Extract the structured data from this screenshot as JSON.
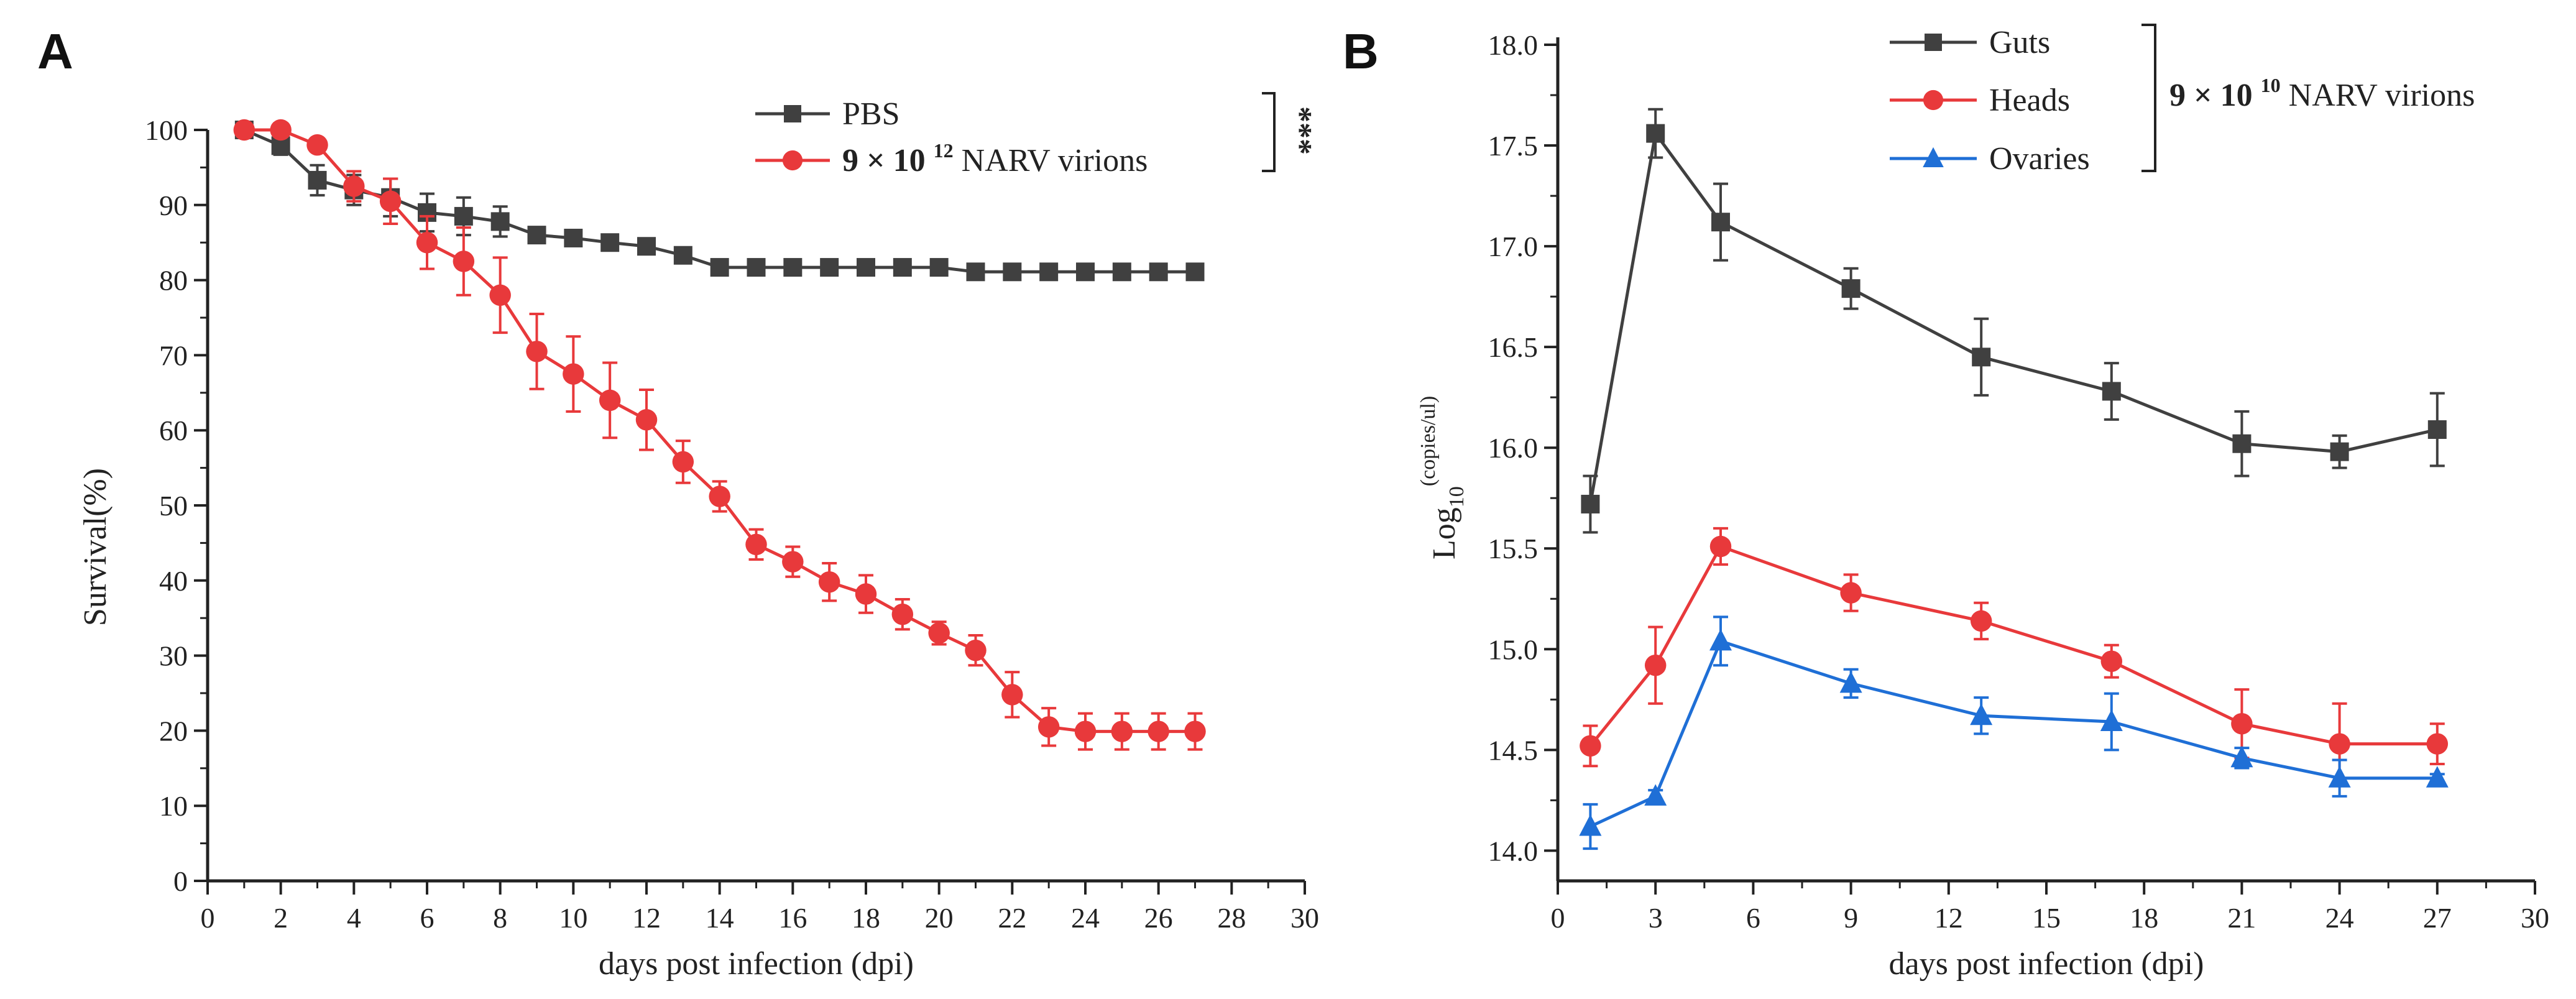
{
  "chart_data": [
    {
      "type": "line",
      "panel_label": "A",
      "xlabel": "days post infection (dpi)",
      "ylabel": "Survival(%)",
      "xlim": [
        0,
        30
      ],
      "ylim": [
        0,
        100
      ],
      "xticks": [
        0,
        2,
        4,
        6,
        8,
        10,
        12,
        14,
        16,
        18,
        20,
        22,
        24,
        26,
        28,
        30
      ],
      "yticks": [
        0,
        10,
        20,
        30,
        40,
        50,
        60,
        70,
        80,
        90,
        100
      ],
      "grid": false,
      "legend_position": "top-right",
      "significance": "***",
      "x": [
        1,
        2,
        3,
        4,
        5,
        6,
        7,
        8,
        9,
        10,
        11,
        12,
        13,
        14,
        15,
        16,
        17,
        18,
        19,
        20,
        21,
        22,
        23,
        24,
        25,
        26,
        27
      ],
      "series": [
        {
          "name": "PBS",
          "color": "#404040",
          "marker": "square",
          "values": [
            100,
            97.9,
            93.3,
            92,
            91,
            89,
            88.5,
            87.8,
            86,
            85.6,
            85,
            84.5,
            83.3,
            81.7,
            81.7,
            81.7,
            81.7,
            81.7,
            81.7,
            81.7,
            81.1,
            81.1,
            81.1,
            81.1,
            81.1,
            81.1,
            81.1
          ],
          "errors": [
            0.5,
            1.2,
            2,
            2,
            2.5,
            2.5,
            2.5,
            2,
            0.8,
            0.5,
            0.5,
            0.5,
            0.5,
            0.5,
            0.5,
            0.5,
            0.5,
            0.5,
            0.5,
            0.5,
            0.5,
            0.5,
            0.5,
            0.5,
            0.5,
            0.5,
            0.5
          ]
        },
        {
          "name_prefix": "9 × 10",
          "name_exp": "12",
          "name_suffix": " NARV virions",
          "color": "#e8393b",
          "marker": "circle",
          "values": [
            100,
            100,
            98,
            92.5,
            90.5,
            85,
            82.5,
            78,
            70.5,
            67.5,
            64,
            61.4,
            55.8,
            51.2,
            44.8,
            42.5,
            39.8,
            38.2,
            35.5,
            33,
            30.7,
            24.8,
            20.5,
            19.9,
            19.9,
            19.9,
            19.9
          ],
          "errors": [
            0.3,
            0.5,
            0.5,
            2,
            3,
            3.5,
            4.5,
            5,
            5,
            5,
            5,
            4,
            2.8,
            2,
            2,
            2,
            2.5,
            2.5,
            2,
            1.5,
            2,
            3,
            2.5,
            2.4,
            2.4,
            2.4,
            2.4
          ]
        }
      ]
    },
    {
      "type": "line",
      "panel_label": "B",
      "xlabel": "days post infection (dpi)",
      "ylabel_base": "Log",
      "ylabel_sub": "10",
      "ylabel_sup": "(copies/ul)",
      "xlim": [
        0,
        30
      ],
      "ylim": [
        13.85,
        18.0
      ],
      "xticks": [
        0,
        3,
        6,
        9,
        12,
        15,
        18,
        21,
        24,
        27,
        30
      ],
      "yticks": [
        "14.0",
        "14.5",
        "15.0",
        "15.5",
        "16.0",
        "16.5",
        "17.0",
        "17.5",
        "18.0"
      ],
      "grid": false,
      "legend_position": "top-center",
      "group_label_prefix": "9 × 10",
      "group_label_exp": "10",
      "group_label_suffix": " NARV virions",
      "x": [
        1,
        3,
        5,
        9,
        13,
        17,
        21,
        24,
        27
      ],
      "series": [
        {
          "name": "Guts",
          "color": "#404040",
          "marker": "square",
          "values": [
            15.72,
            17.56,
            17.12,
            16.79,
            16.45,
            16.28,
            16.02,
            15.98,
            16.09
          ],
          "errors": [
            0.14,
            0.12,
            0.19,
            0.1,
            0.19,
            0.14,
            0.16,
            0.08,
            0.18
          ]
        },
        {
          "name": "Heads",
          "color": "#e8393b",
          "marker": "circle",
          "values": [
            14.52,
            14.92,
            15.51,
            15.28,
            15.14,
            14.94,
            14.63,
            14.53,
            14.53
          ],
          "errors": [
            0.1,
            0.19,
            0.09,
            0.09,
            0.09,
            0.08,
            0.17,
            0.2,
            0.1
          ]
        },
        {
          "name": "Ovaries",
          "color": "#1f6fd6",
          "marker": "triangle",
          "values": [
            14.12,
            14.27,
            15.04,
            14.83,
            14.67,
            14.64,
            14.46,
            14.36,
            14.36
          ],
          "errors": [
            0.11,
            0.03,
            0.12,
            0.07,
            0.09,
            0.14,
            0.05,
            0.09,
            0.02
          ]
        }
      ]
    }
  ]
}
